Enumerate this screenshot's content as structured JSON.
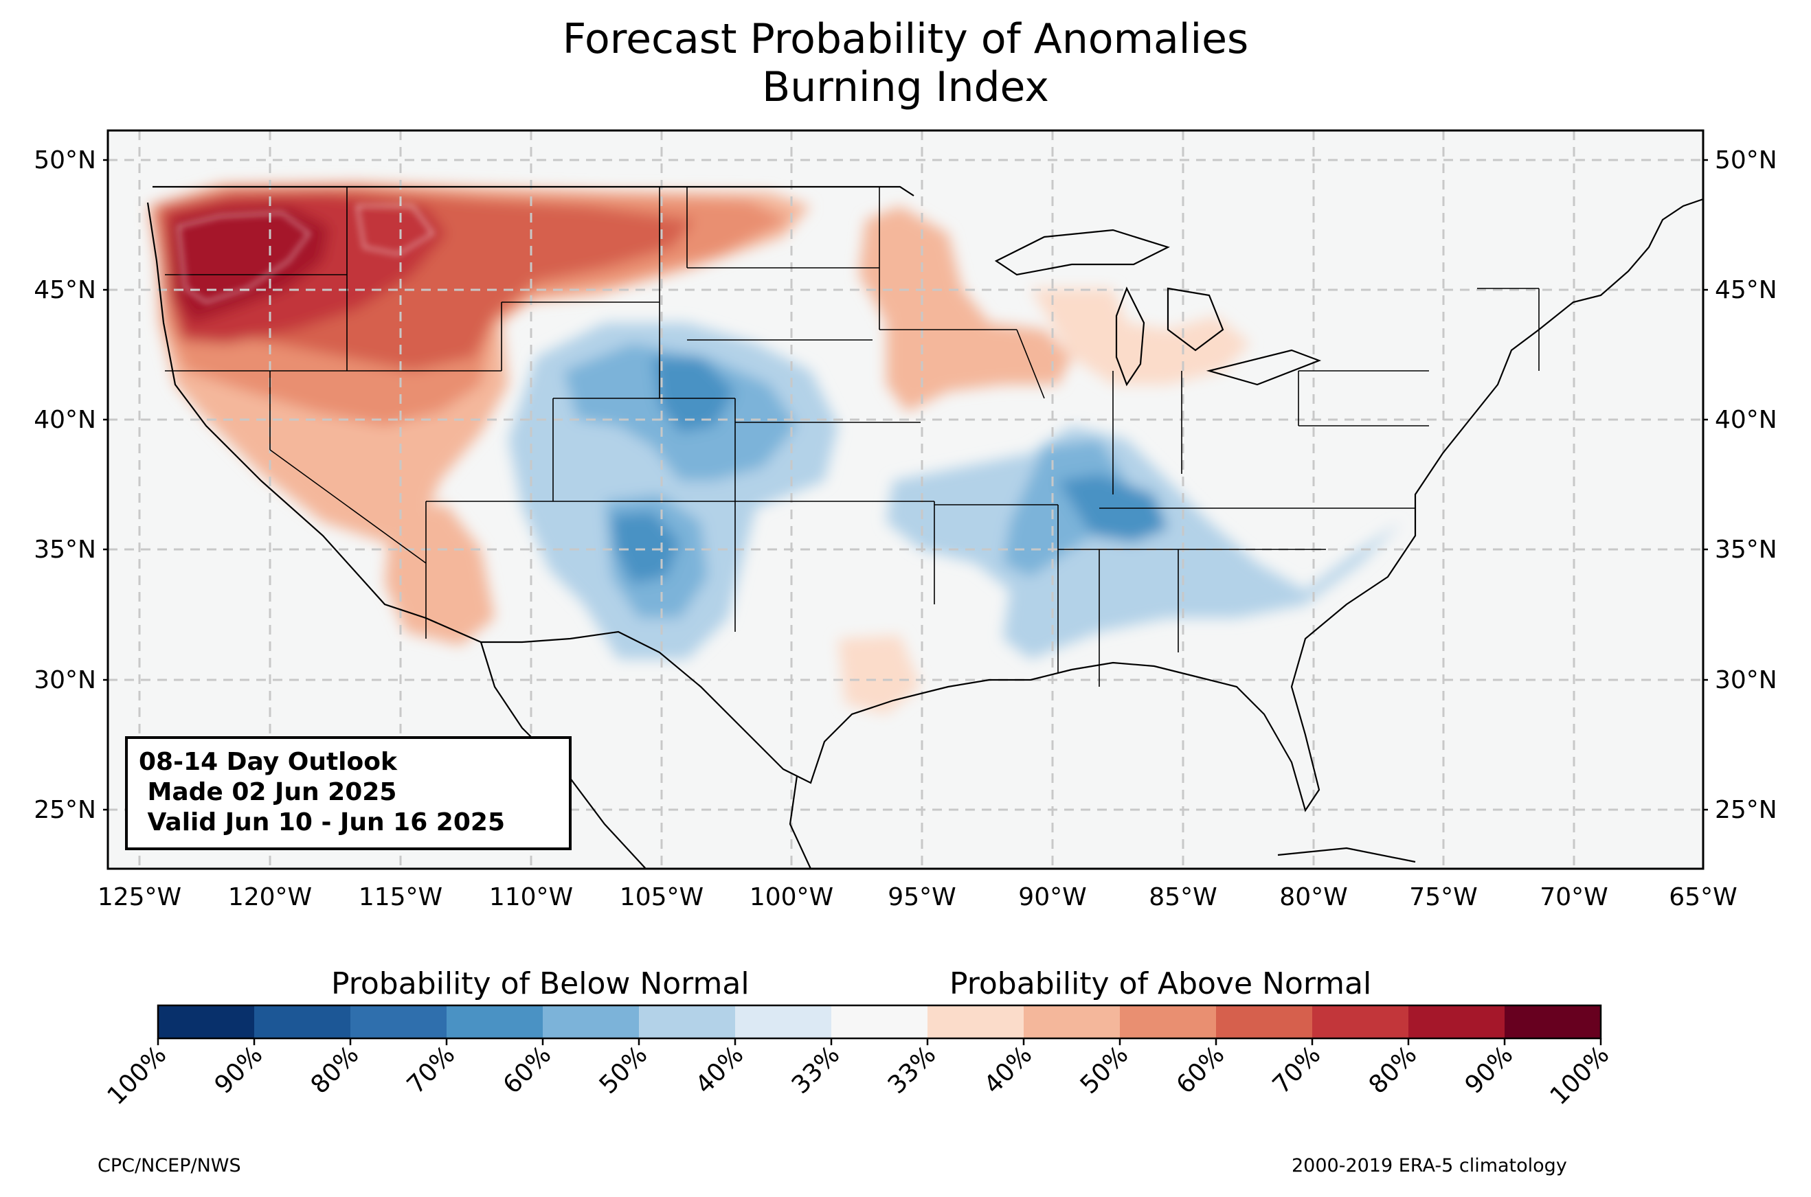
{
  "title": {
    "line1": "Forecast Probability of Anomalies",
    "line2": "Burning Index"
  },
  "info_box": {
    "line1": "08-14 Day Outlook",
    "line2": " Made 02 Jun 2025",
    "line3": " Valid Jun 10 - Jun 16 2025"
  },
  "axes": {
    "lat_labels": [
      "25°N",
      "30°N",
      "35°N",
      "40°N",
      "45°N",
      "50°N"
    ],
    "lat_values": [
      25,
      30,
      35,
      40,
      45,
      50
    ],
    "lon_labels": [
      "125°W",
      "120°W",
      "115°W",
      "110°W",
      "105°W",
      "100°W",
      "95°W",
      "90°W",
      "85°W",
      "80°W",
      "75°W",
      "70°W",
      "65°W"
    ],
    "lon_values": [
      -125,
      -120,
      -115,
      -110,
      -105,
      -100,
      -95,
      -90,
      -85,
      -80,
      -75,
      -70,
      -65
    ],
    "lon_range": [
      -126.2,
      -65.1
    ],
    "lat_range": [
      22.8,
      51.2
    ],
    "grid": "dashed light gray"
  },
  "colorbar": {
    "below_label": "Probability of Below Normal",
    "above_label": "Probability of Above Normal",
    "tick_labels": [
      "100%",
      "90%",
      "80%",
      "70%",
      "60%",
      "50%",
      "40%",
      "33%",
      "33%",
      "40%",
      "50%",
      "60%",
      "70%",
      "80%",
      "90%",
      "100%"
    ],
    "colors": [
      "#08306b",
      "#1c5796",
      "#2f6fad",
      "#4a92c4",
      "#7cb3d9",
      "#b3d2e8",
      "#dce9f4",
      "#f7f7f7",
      "#fbdcca",
      "#f4b79b",
      "#e98f71",
      "#d6604d",
      "#c2363a",
      "#a5172a",
      "#67001f"
    ]
  },
  "footer": {
    "left": "CPC/NCEP/NWS",
    "right": "2000-2019 ERA-5 climatology"
  },
  "colors": {
    "background_land": "#f5f6f6",
    "above_strong": "#a5172a",
    "above": "#d6604d",
    "above_light": "#f4b79b",
    "below": "#4a92c4",
    "below_light": "#b3d2e8"
  }
}
